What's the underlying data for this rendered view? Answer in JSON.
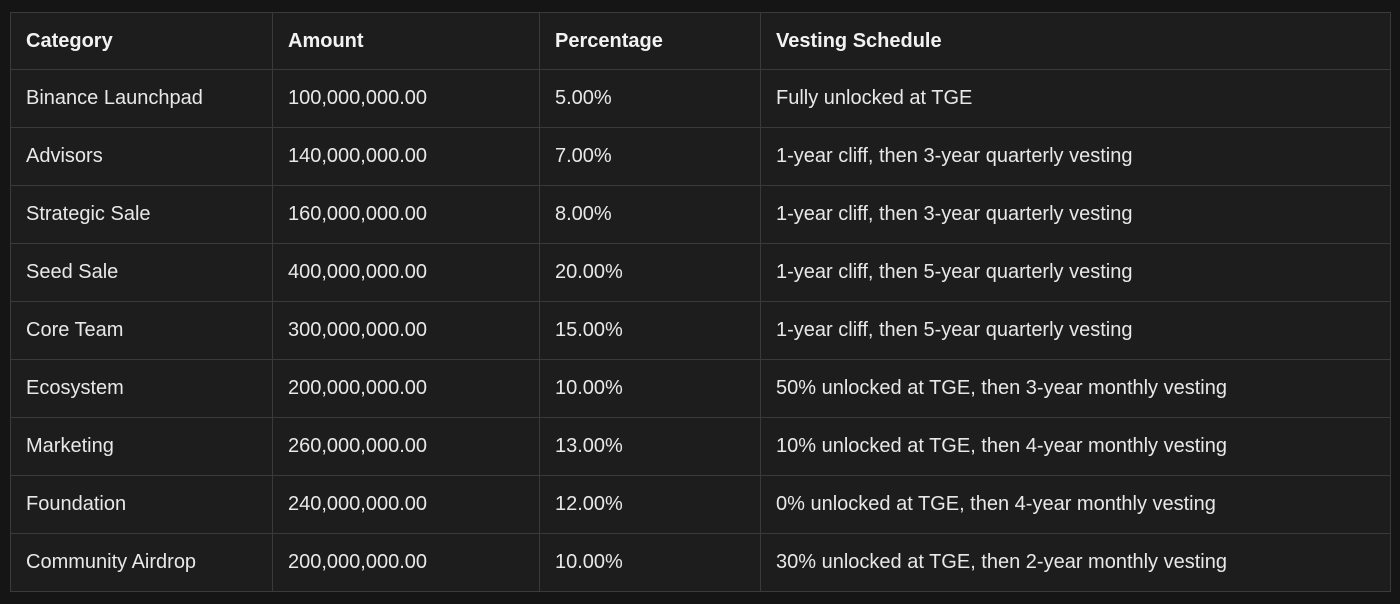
{
  "chart_data": {
    "type": "table",
    "columns": [
      "Category",
      "Amount",
      "Percentage",
      "Vesting Schedule"
    ],
    "rows": [
      {
        "category": "Binance Launchpad",
        "amount": "100,000,000.00",
        "percentage": "5.00%",
        "vesting": "Fully unlocked at TGE"
      },
      {
        "category": "Advisors",
        "amount": "140,000,000.00",
        "percentage": "7.00%",
        "vesting": "1-year cliff, then 3-year quarterly vesting"
      },
      {
        "category": "Strategic Sale",
        "amount": "160,000,000.00",
        "percentage": "8.00%",
        "vesting": "1-year cliff, then 3-year quarterly vesting"
      },
      {
        "category": "Seed Sale",
        "amount": "400,000,000.00",
        "percentage": "20.00%",
        "vesting": "1-year cliff, then 5-year quarterly vesting"
      },
      {
        "category": "Core Team",
        "amount": "300,000,000.00",
        "percentage": "15.00%",
        "vesting": "1-year cliff, then 5-year quarterly vesting"
      },
      {
        "category": "Ecosystem",
        "amount": "200,000,000.00",
        "percentage": "10.00%",
        "vesting": "50% unlocked at TGE, then 3-year monthly vesting"
      },
      {
        "category": "Marketing",
        "amount": "260,000,000.00",
        "percentage": "13.00%",
        "vesting": "10% unlocked at TGE, then 4-year monthly vesting"
      },
      {
        "category": "Foundation",
        "amount": "240,000,000.00",
        "percentage": "12.00%",
        "vesting": "0% unlocked at TGE, then 4-year monthly vesting"
      },
      {
        "category": "Community Airdrop",
        "amount": "200,000,000.00",
        "percentage": "10.00%",
        "vesting": "30% unlocked at TGE, then 2-year monthly vesting"
      }
    ],
    "title": "",
    "colors": {
      "page_background": "#151515",
      "cell_background": "#1d1d1d",
      "border": "#3a3a3a",
      "body_text": "#e8e8e8",
      "header_text": "#f2f2f2"
    }
  }
}
